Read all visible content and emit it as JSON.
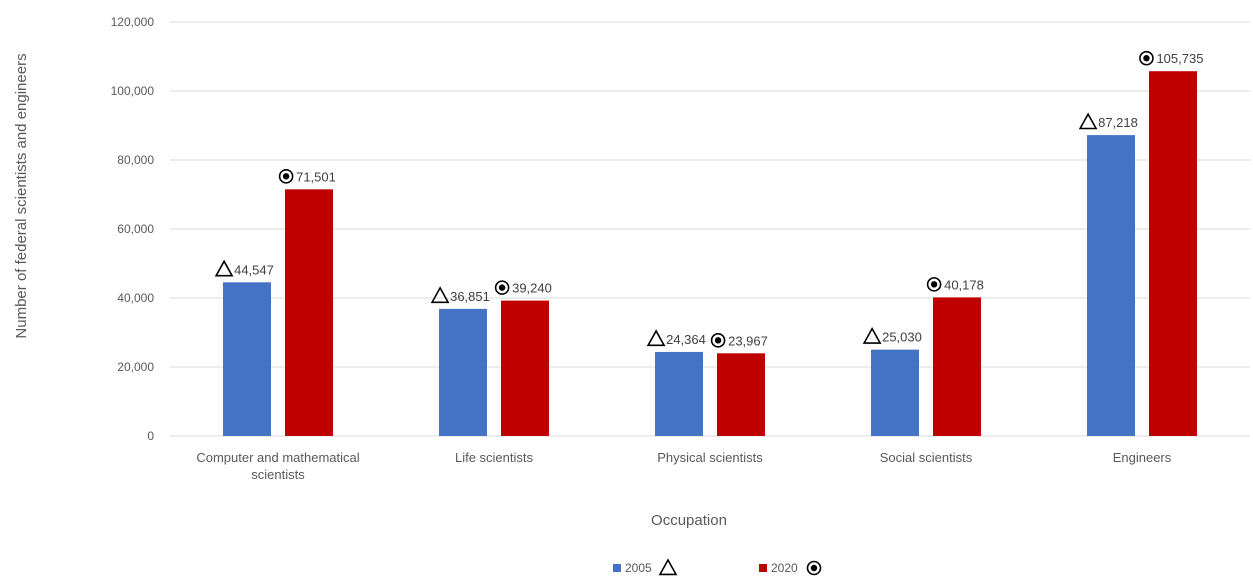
{
  "chart_data": {
    "type": "bar",
    "categories": [
      "Computer and mathematical scientists",
      "Life scientists",
      "Physical scientists",
      "Social scientists",
      "Engineers"
    ],
    "series": [
      {
        "name": "2005",
        "marker": "triangle",
        "color": "#4472C4",
        "values": [
          44547,
          36851,
          24364,
          25030,
          87218
        ],
        "labels": [
          "44,547",
          "36,851",
          "24,364",
          "25,030",
          "87,218"
        ]
      },
      {
        "name": "2020",
        "marker": "circle-dot",
        "color": "#C00000",
        "values": [
          71501,
          39240,
          23967,
          40178,
          105735
        ],
        "labels": [
          "71,501",
          "39,240",
          "23,967",
          "40,178",
          "105,735"
        ]
      }
    ],
    "xlabel": "Occupation",
    "ylabel": "Number of federal scientists and engineers",
    "ylim": [
      0,
      120000
    ],
    "yticks": [
      0,
      20000,
      40000,
      60000,
      80000,
      100000,
      120000
    ],
    "ytick_labels": [
      "0",
      "20,000",
      "40,000",
      "60,000",
      "80,000",
      "100,000",
      "120,000"
    ],
    "grid": true,
    "legend_position": "bottom"
  }
}
